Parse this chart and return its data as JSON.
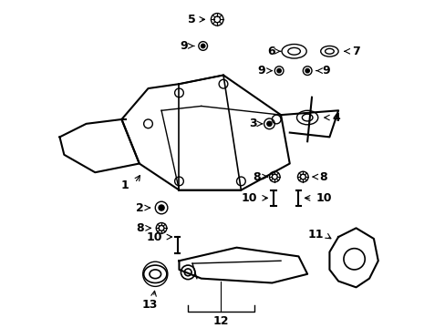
{
  "bg_color": "#ffffff",
  "line_color": "#000000",
  "title": "",
  "fig_width": 4.89,
  "fig_height": 3.6,
  "dpi": 100
}
